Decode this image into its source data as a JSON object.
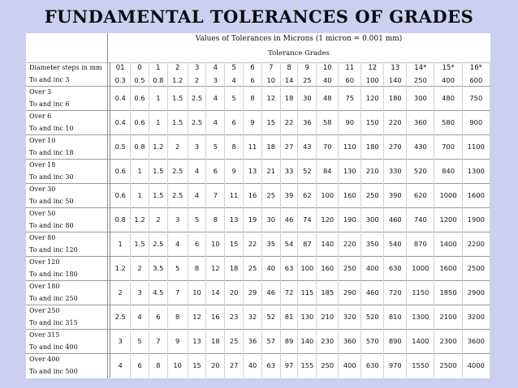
{
  "title": "FUNDAMENTAL TOLERANCES OF GRADES",
  "subtitle": "Values of Tolerances in Microns (1 micron = 0.001 mm)",
  "grades_header": "Tolerance Grades",
  "header_label": "Diameter steps in mm",
  "grades": [
    "01",
    "0",
    "1",
    "2",
    "3",
    "4",
    "5",
    "6",
    "7",
    "8",
    "9",
    "10",
    "11",
    "12",
    "13",
    "14*",
    "15*",
    "16*"
  ],
  "rows": [
    {
      "line1": "To and inc 3",
      "line2": "",
      "values": [
        "0.3",
        "0.5",
        "0.8",
        "1.2",
        "2",
        "3",
        "4",
        "6",
        "10",
        "14",
        "25",
        "40",
        "60",
        "100",
        "140",
        "250",
        "400",
        "600"
      ]
    },
    {
      "line1": "Over 3",
      "line2": "To and inc 6",
      "values": [
        "0.4",
        "0.6",
        "1",
        "1.5",
        "2.5",
        "4",
        "5",
        "8",
        "12",
        "18",
        "30",
        "48",
        "75",
        "120",
        "180",
        "300",
        "480",
        "750"
      ]
    },
    {
      "line1": "Over 6",
      "line2": "To and inc 10",
      "values": [
        "0.4",
        "0.6",
        "1",
        "1.5",
        "2.5",
        "4",
        "6",
        "9",
        "15",
        "22",
        "36",
        "58",
        "90",
        "150",
        "220",
        "360",
        "580",
        "900"
      ]
    },
    {
      "line1": "Over 10",
      "line2": "To and inc 18",
      "values": [
        "0.5",
        "0.8",
        "1.2",
        "2",
        "3",
        "5",
        "8",
        "11",
        "18",
        "27",
        "43",
        "70",
        "110",
        "180",
        "270",
        "430",
        "700",
        "1100"
      ]
    },
    {
      "line1": "Over 18",
      "line2": "To and inc 30",
      "values": [
        "0.6",
        "1",
        "1.5",
        "2.5",
        "4",
        "6",
        "9",
        "13",
        "21",
        "33",
        "52",
        "84",
        "130",
        "210",
        "330",
        "520",
        "840",
        "1300"
      ]
    },
    {
      "line1": "Over 30",
      "line2": "To and inc 50",
      "values": [
        "0.6",
        "1",
        "1.5",
        "2.5",
        "4",
        "7",
        "11",
        "16",
        "25",
        "39",
        "62",
        "100",
        "160",
        "250",
        "390",
        "620",
        "1000",
        "1600"
      ]
    },
    {
      "line1": "Over 50",
      "line2": "To and inc 80",
      "values": [
        "0.8",
        "1.2",
        "2",
        "3",
        "5",
        "8",
        "13",
        "19",
        "30",
        "46",
        "74",
        "120",
        "190",
        "300",
        "460",
        "740",
        "1200",
        "1900"
      ]
    },
    {
      "line1": "Over 80",
      "line2": "To and inc 120",
      "values": [
        "1",
        "1.5",
        "2.5",
        "4",
        "6",
        "10",
        "15",
        "22",
        "35",
        "54",
        "87",
        "140",
        "220",
        "350",
        "540",
        "870",
        "1400",
        "2200"
      ]
    },
    {
      "line1": "Over 120",
      "line2": "To and inc 180",
      "values": [
        "1.2",
        "2",
        "3.5",
        "5",
        "8",
        "12",
        "18",
        "25",
        "40",
        "63",
        "100",
        "160",
        "250",
        "400",
        "630",
        "1000",
        "1600",
        "2500"
      ]
    },
    {
      "line1": "Over 180",
      "line2": "To and inc 250",
      "values": [
        "2",
        "3",
        "4.5",
        "7",
        "10",
        "14",
        "20",
        "29",
        "46",
        "72",
        "115",
        "185",
        "290",
        "460",
        "720",
        "1150",
        "1850",
        "2900"
      ]
    },
    {
      "line1": "Over 250",
      "line2": "To and inc 315",
      "values": [
        "2.5",
        "4",
        "6",
        "8",
        "12",
        "16",
        "23",
        "32",
        "52",
        "81",
        "130",
        "210",
        "320",
        "520",
        "810",
        "1300",
        "2100",
        "3200"
      ]
    },
    {
      "line1": "Over 315",
      "line2": "To and inc 400",
      "values": [
        "3",
        "5",
        "7",
        "9",
        "13",
        "18",
        "25",
        "36",
        "57",
        "89",
        "140",
        "230",
        "360",
        "570",
        "890",
        "1400",
        "2300",
        "3600"
      ]
    },
    {
      "line1": "Over 400",
      "line2": "To and inc 500",
      "values": [
        "4",
        "6",
        "8",
        "10",
        "15",
        "20",
        "27",
        "40",
        "63",
        "97",
        "155",
        "250",
        "400",
        "630",
        "970",
        "1550",
        "2500",
        "4000"
      ]
    }
  ]
}
